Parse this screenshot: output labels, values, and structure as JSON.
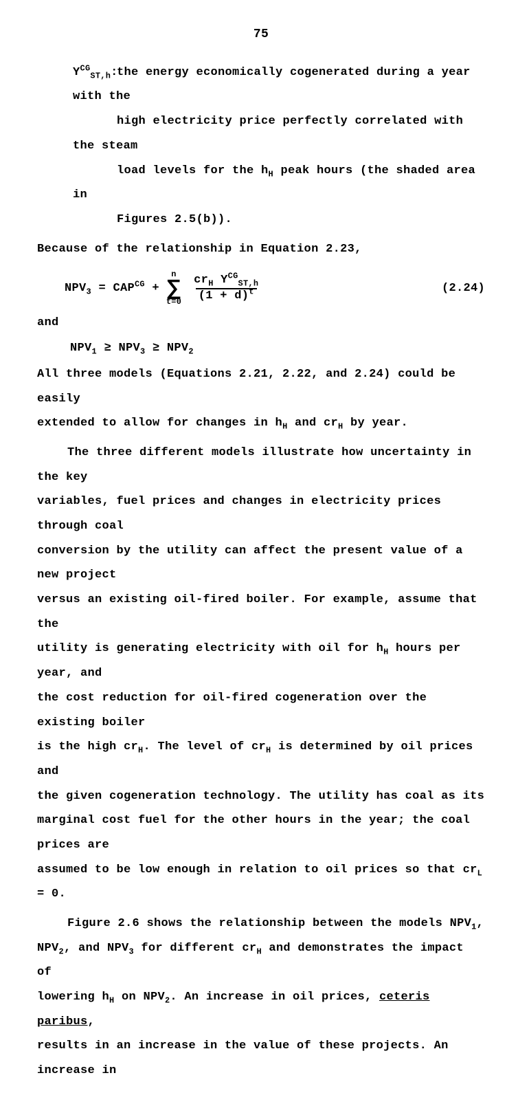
{
  "page_number": "75",
  "defn": {
    "symbol_html": "Y<sup>CG</sup><sub>ST,h</sub>:",
    "lines": [
      "the energy economically cogenerated during a year with the",
      "high electricity price perfectly correlated with the steam",
      "load levels for the h<sub>H</sub> peak hours (the shaded area in",
      "Figures 2.5(b))."
    ]
  },
  "lead1": "Because of the relationship in Equation 2.23,",
  "eq": {
    "label": "(2.24)",
    "lhs": "NPV<sub>3</sub> = CAP<sup>CG</sup> +",
    "sum_top": "n",
    "sum_bot": "t=0",
    "frac_num": "cr<sub>H</sub>&nbsp;Y<sup>CG</sup><sub>ST,h</sub>",
    "frac_den": "(1 + d)<sup>t</sup>"
  },
  "and": "and",
  "inequality": "NPV<sub>1</sub> ≥ NPV<sub>3</sub> ≥ NPV<sub>2</sub>",
  "body1_lines": [
    "All three models (Equations 2.21, 2.22, and 2.24) could be easily",
    "extended to allow for changes in h<sub>H</sub> and cr<sub>H</sub> by year."
  ],
  "body2_lines": [
    "The three different models illustrate how uncertainty in the key",
    "variables, fuel prices and changes in electricity prices through coal",
    "conversion by the utility can affect the present value of a new project",
    "versus an existing oil-fired boiler.  For example, assume that the",
    "utility is generating electricity with oil for h<sub>H</sub> hours per year, and",
    "the cost reduction for oil-fired cogeneration over the existing boiler",
    "is the high cr<sub>H</sub>.  The level of cr<sub>H</sub> is determined by oil prices and",
    "the given cogeneration technology.  The utility has coal as its",
    "marginal cost fuel for the other hours in the year; the coal prices are",
    "assumed to be low enough in relation to oil prices so that cr<sub>L</sub> = 0."
  ],
  "body3_lines": [
    "Figure 2.6 shows the relationship between the models NPV<sub>1</sub>,",
    "NPV<sub>2</sub>, and NPV<sub>3</sub> for different cr<sub>H</sub> and demonstrates the impact of",
    "lowering h<sub>H</sub> on NPV<sub>2</sub>.  An increase in oil prices, <span class=\"underline\">ceteris paribus</span>,",
    "results in an increase in the value of these projects.  An increase in"
  ]
}
